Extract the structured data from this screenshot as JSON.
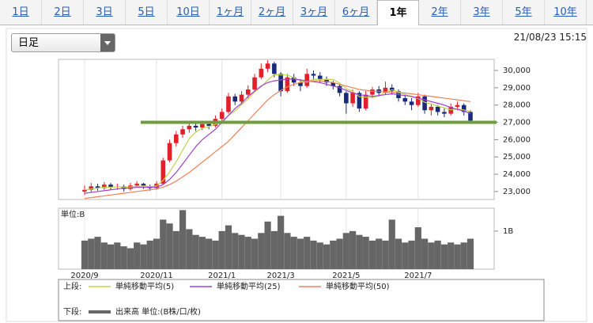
{
  "tabs": [
    "1日",
    "2日",
    "3日",
    "5日",
    "10日",
    "1ヶ月",
    "2ヶ月",
    "3ヶ月",
    "6ヶ月",
    "1年",
    "2年",
    "3年",
    "5年",
    "10年"
  ],
  "active_tab_index": 9,
  "dropdown": "日足",
  "timestamp": "21/08/23 15:15",
  "chart_data": [
    {
      "type": "candlestick",
      "legend_title": "上段:",
      "up_color": "#e0202a",
      "down_color": "#1a2a7a",
      "ylim": [
        22540,
        30640
      ],
      "yticks": [
        {
          "value": 23000,
          "label": "23,000"
        },
        {
          "value": 24000,
          "label": "24,000"
        },
        {
          "value": 25000,
          "label": "25,000"
        },
        {
          "value": 26000,
          "label": "26,000"
        },
        {
          "value": 27000,
          "label": "27,000"
        },
        {
          "value": 28000,
          "label": "28,000"
        },
        {
          "value": 29000,
          "label": "29,000"
        },
        {
          "value": 30000,
          "label": "30,000"
        }
      ],
      "hlines": [
        {
          "value": 27000,
          "color": "#6f9c3c"
        }
      ],
      "open": [
        23000,
        23100,
        23300,
        23200,
        23400,
        23250,
        23300,
        23150,
        23350,
        23450,
        23300,
        23200,
        23450,
        24800,
        25800,
        26300,
        26600,
        26800,
        26700,
        26900,
        26800,
        27200,
        27600,
        28500,
        28200,
        28600,
        28900,
        29600,
        30100,
        30400,
        29800,
        28800,
        29600,
        29300,
        29100,
        29800,
        29700,
        29500,
        29300,
        29100,
        28700,
        28100,
        28700,
        27800,
        28600,
        28900,
        28700,
        29000,
        28800,
        28400,
        28200,
        28000,
        28500,
        27700,
        27900,
        27600,
        27500,
        27900,
        28000,
        27600
      ],
      "high": [
        23350,
        23500,
        23450,
        23550,
        23500,
        23450,
        23400,
        23500,
        23600,
        23500,
        23400,
        23600,
        24950,
        26000,
        26500,
        26800,
        27000,
        26950,
        27100,
        27050,
        27400,
        27800,
        28700,
        28650,
        28800,
        29150,
        29800,
        30400,
        30600,
        30500,
        29900,
        29800,
        29800,
        29500,
        30100,
        30000,
        29900,
        29650,
        29400,
        29200,
        28800,
        28900,
        28800,
        28800,
        29050,
        29100,
        29350,
        29200,
        28900,
        28600,
        28400,
        28700,
        28600,
        28100,
        28000,
        27800,
        28100,
        28200,
        28100,
        27700
      ],
      "low": [
        22800,
        22950,
        23050,
        23100,
        23100,
        23100,
        23000,
        23050,
        23250,
        23150,
        23050,
        23100,
        23400,
        24700,
        25600,
        26100,
        26400,
        26500,
        26550,
        26600,
        26700,
        27000,
        27500,
        28000,
        28000,
        28400,
        28800,
        29500,
        29900,
        29600,
        28500,
        28700,
        29100,
        28800,
        29000,
        29450,
        29300,
        29100,
        28900,
        28500,
        27500,
        27900,
        27600,
        27700,
        28400,
        28500,
        28600,
        28600,
        28200,
        28000,
        27700,
        27900,
        27500,
        27400,
        27400,
        27300,
        27400,
        27700,
        27400,
        27000
      ],
      "close": [
        23100,
        23300,
        23200,
        23400,
        23250,
        23300,
        23150,
        23350,
        23450,
        23300,
        23200,
        23450,
        24800,
        25800,
        26300,
        26600,
        26800,
        26700,
        26900,
        26800,
        27200,
        27600,
        28500,
        28200,
        28600,
        28900,
        29600,
        30100,
        30400,
        29800,
        28800,
        29600,
        29300,
        29100,
        29800,
        29700,
        29500,
        29300,
        29100,
        28700,
        28100,
        28700,
        27800,
        28600,
        28900,
        28700,
        29000,
        28800,
        28400,
        28200,
        28000,
        28500,
        27700,
        27900,
        27600,
        27500,
        27900,
        28000,
        27600,
        27100
      ],
      "series": [
        {
          "name": "単純移動平均(5)",
          "color": "#c2d44a",
          "values": [
            23100,
            23150,
            23200,
            23250,
            23250,
            23280,
            23260,
            23270,
            23300,
            23330,
            23290,
            23320,
            23640,
            24140,
            24710,
            25390,
            26060,
            26440,
            26660,
            26760,
            26880,
            27040,
            27400,
            27660,
            28020,
            28360,
            28760,
            29060,
            29440,
            29760,
            29740,
            29740,
            29580,
            29400,
            29320,
            29500,
            29480,
            29480,
            29480,
            29260,
            28940,
            28800,
            28480,
            28460,
            28420,
            28540,
            28740,
            28880,
            28760,
            28620,
            28480,
            28380,
            28160,
            28060,
            27940,
            27840,
            27720,
            27780,
            27720,
            27620
          ]
        },
        {
          "name": "単純移動平均(25)",
          "color": "#a040d0",
          "values": [
            22900,
            22950,
            23000,
            23050,
            23100,
            23150,
            23200,
            23200,
            23250,
            23250,
            23250,
            23250,
            23400,
            23700,
            24100,
            24600,
            25100,
            25600,
            26000,
            26300,
            26600,
            27000,
            27400,
            27800,
            28100,
            28500,
            28800,
            29100,
            29300,
            29400,
            29450,
            29500,
            29500,
            29450,
            29400,
            29350,
            29300,
            29200,
            29100,
            29000,
            28850,
            28700,
            28600,
            28550,
            28500,
            28550,
            28600,
            28650,
            28600,
            28550,
            28500,
            28400,
            28300,
            28200,
            28100,
            28000,
            27850,
            27750,
            27650,
            27500
          ]
        },
        {
          "name": "単純移動平均(50)",
          "color": "#f08058",
          "values": [
            22600,
            22650,
            22700,
            22750,
            22800,
            22850,
            22900,
            22950,
            23000,
            23050,
            23100,
            23150,
            23250,
            23400,
            23600,
            23850,
            24100,
            24400,
            24700,
            25000,
            25300,
            25600,
            25900,
            26300,
            26700,
            27100,
            27500,
            27900,
            28300,
            28600,
            28850,
            29050,
            29200,
            29300,
            29350,
            29400,
            29400,
            29350,
            29300,
            29200,
            29100,
            29000,
            28900,
            28850,
            28800,
            28800,
            28750,
            28750,
            28700,
            28700,
            28650,
            28600,
            28550,
            28500,
            28450,
            28400,
            28350,
            28300,
            28250,
            28200
          ]
        }
      ]
    },
    {
      "type": "bar",
      "legend_title": "下段:",
      "unit_label": "単位:B",
      "categories": [
        "2020/9",
        null,
        null,
        null,
        null,
        null,
        null,
        null,
        null,
        null,
        null,
        "2020/11",
        null,
        null,
        null,
        null,
        null,
        null,
        null,
        null,
        null,
        "2021/1",
        null,
        null,
        null,
        null,
        null,
        null,
        null,
        null,
        "2021/3",
        null,
        null,
        null,
        null,
        null,
        null,
        null,
        null,
        null,
        "2021/5",
        null,
        null,
        null,
        null,
        null,
        null,
        null,
        null,
        null,
        null,
        "2021/7",
        null,
        null,
        null,
        null,
        null,
        null,
        null,
        null
      ],
      "ylim": [
        0,
        1.6
      ],
      "yticks": [
        {
          "value": 1,
          "label": "1B"
        }
      ],
      "series": [
        {
          "name": "出来高 単位:(B株/口/枚)",
          "color": "#666666",
          "values": [
            0.75,
            0.8,
            0.85,
            0.7,
            0.65,
            0.7,
            0.6,
            0.55,
            0.7,
            0.65,
            0.75,
            0.8,
            1.3,
            1.2,
            1.0,
            1.55,
            1.05,
            0.9,
            0.85,
            0.8,
            0.75,
            1.0,
            1.15,
            0.95,
            0.9,
            0.85,
            0.8,
            0.95,
            1.25,
            1.0,
            1.4,
            0.95,
            0.85,
            0.8,
            0.85,
            0.75,
            0.7,
            0.65,
            0.75,
            0.8,
            0.95,
            1.0,
            0.9,
            0.85,
            0.75,
            0.8,
            0.75,
            1.3,
            0.8,
            0.7,
            0.75,
            1.1,
            0.8,
            0.7,
            0.75,
            0.65,
            0.7,
            0.65,
            0.7,
            0.8
          ]
        }
      ]
    }
  ]
}
